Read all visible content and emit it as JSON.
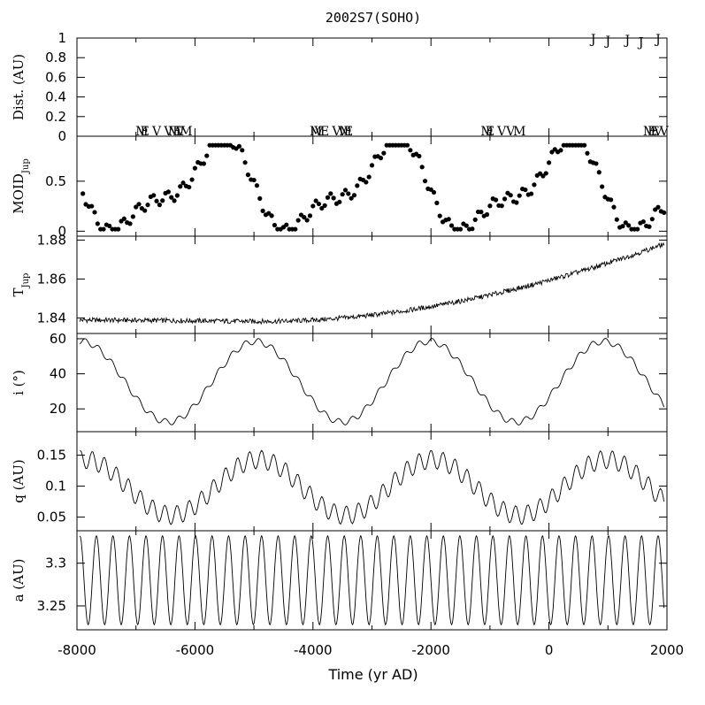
{
  "chart_data": {
    "type": "line",
    "title": "2002S7(SOHO)",
    "xlabel": "Time (yr AD)",
    "xlim": [
      -8000,
      2000
    ],
    "xticks": [
      -8000,
      -6000,
      -4000,
      -2000,
      0,
      2000
    ],
    "xtick_labels": [
      "-8000",
      "-6000",
      "-4000",
      "-2000",
      "0",
      "2000"
    ],
    "panels": [
      {
        "id": "dist",
        "ylabel": "Dist. (AU)",
        "ylim": [
          0,
          1
        ],
        "yticks": [
          0,
          0.2,
          0.4,
          0.6,
          0.8,
          1
        ],
        "ytick_labels": [
          "0",
          "0.2",
          "0.4",
          "0.6",
          "0.8",
          "1"
        ],
        "markers": [
          {
            "letter": "J",
            "x": 750,
            "y": 1.0
          },
          {
            "letter": "J",
            "x": 1000,
            "y": 0.98
          },
          {
            "letter": "J",
            "x": 1330,
            "y": 0.99
          },
          {
            "letter": "J",
            "x": 1560,
            "y": 0.97
          },
          {
            "letter": "J",
            "x": 1850,
            "y": 1.0
          }
        ]
      },
      {
        "id": "moid",
        "ylabel": "MOID_Jup",
        "ylim": [
          -0.05,
          0.95
        ],
        "yticks": [
          0,
          0.5
        ],
        "ytick_labels": [
          "0",
          "0.5"
        ],
        "planet_markers": [
          {
            "letter": "M",
            "x": -6900
          },
          {
            "letter": "E",
            "x": -6850
          },
          {
            "letter": "V",
            "x": -6650
          },
          {
            "letter": "V",
            "x": -6450
          },
          {
            "letter": "M",
            "x": -6350
          },
          {
            "letter": "E",
            "x": -6300
          },
          {
            "letter": "V",
            "x": -6250
          },
          {
            "letter": "M",
            "x": -6150
          },
          {
            "letter": "M",
            "x": -3950
          },
          {
            "letter": "V",
            "x": -3900
          },
          {
            "letter": "E",
            "x": -3800
          },
          {
            "letter": "V",
            "x": -3600
          },
          {
            "letter": "V",
            "x": -3500
          },
          {
            "letter": "M",
            "x": -3450
          },
          {
            "letter": "E",
            "x": -3400
          },
          {
            "letter": "M",
            "x": -1050
          },
          {
            "letter": "E",
            "x": -1000
          },
          {
            "letter": "V",
            "x": -800
          },
          {
            "letter": "V",
            "x": -650
          },
          {
            "letter": "M",
            "x": -500
          },
          {
            "letter": "M",
            "x": 1700
          },
          {
            "letter": "E",
            "x": 1750
          },
          {
            "letter": "V",
            "x": 1850
          },
          {
            "letter": "E",
            "x": 1800
          },
          {
            "letter": "V",
            "x": 1950
          }
        ]
      },
      {
        "id": "tjup",
        "ylabel": "T_Jup",
        "ylim": [
          1.832,
          1.882
        ],
        "yticks": [
          1.84,
          1.86,
          1.88
        ],
        "ytick_labels": [
          "1.84",
          "1.86",
          "1.88"
        ]
      },
      {
        "id": "incl",
        "ylabel": "i (°)",
        "ylim": [
          7,
          63
        ],
        "yticks": [
          20,
          40,
          60
        ],
        "ytick_labels": [
          "20",
          "40",
          "60"
        ]
      },
      {
        "id": "q",
        "ylabel": "q (AU)",
        "ylim": [
          0.028,
          0.188
        ],
        "yticks": [
          0.05,
          0.1,
          0.15
        ],
        "ytick_labels": [
          "0.05",
          "0.1",
          "0.15"
        ]
      },
      {
        "id": "a",
        "ylabel": "a (AU)",
        "ylim": [
          3.222,
          3.338
        ],
        "yticks": [
          3.25,
          3.3
        ],
        "ytick_labels": [
          "3.25",
          "3.3"
        ]
      }
    ]
  }
}
